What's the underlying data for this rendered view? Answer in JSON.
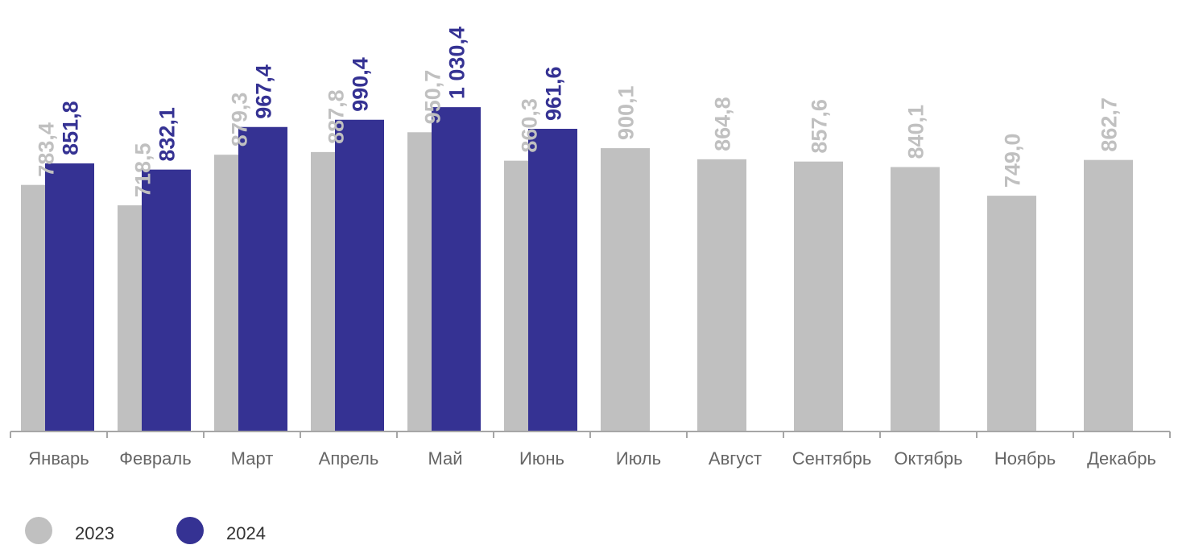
{
  "chart_data": {
    "type": "bar",
    "title": "",
    "xlabel": "",
    "ylabel": "",
    "ylim": [
      0,
      1070
    ],
    "grid": false,
    "legend_position": "bottom-left",
    "categories": [
      "Январь",
      "Февраль",
      "Март",
      "Апрель",
      "Май",
      "Июнь",
      "Июль",
      "Август",
      "Сентябрь",
      "Октябрь",
      "Ноябрь",
      "Декабрь"
    ],
    "series": [
      {
        "name": "2023",
        "color": "#c0c0c0",
        "values": [
          783.4,
          718.5,
          879.3,
          887.8,
          950.7,
          860.3,
          900.1,
          864.8,
          857.6,
          840.1,
          749.0,
          862.7
        ],
        "labels": [
          "783,4",
          "718,5",
          "879,3",
          "887,8",
          "950,7",
          "860,3",
          "900,1",
          "864,8",
          "857,6",
          "840,1",
          "749,0",
          "862,7"
        ]
      },
      {
        "name": "2024",
        "color": "#353293",
        "values": [
          851.8,
          832.1,
          967.4,
          990.4,
          1030.4,
          961.6,
          null,
          null,
          null,
          null,
          null,
          null
        ],
        "labels": [
          "851,8",
          "832,1",
          "967,4",
          "990,4",
          "1 030,4",
          "961,6",
          null,
          null,
          null,
          null,
          null,
          null
        ]
      }
    ]
  }
}
